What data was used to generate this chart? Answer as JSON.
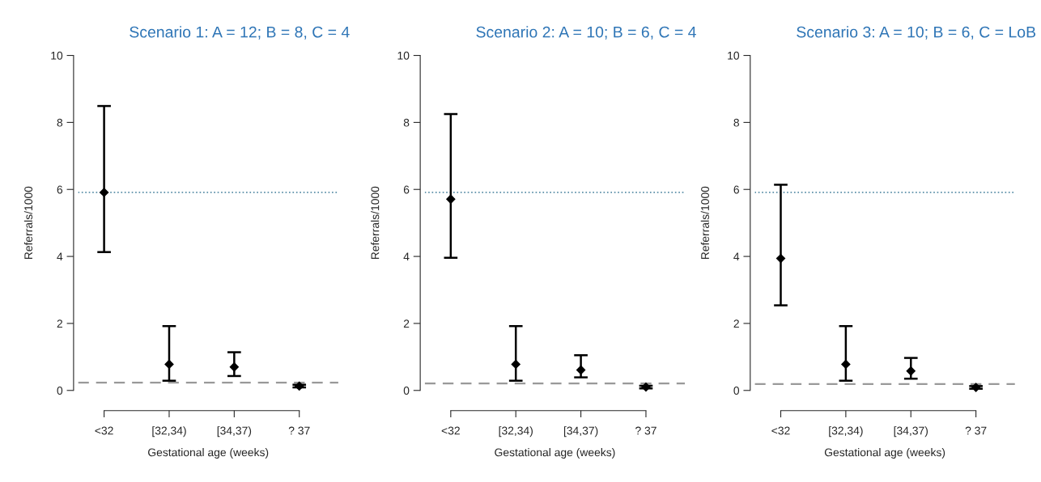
{
  "chart_data": [
    {
      "type": "scatter",
      "title": "Scenario 1: A = 12; B = 8, C = 4",
      "xlabel": "Gestational age (weeks)",
      "ylabel": "Referrals/1000",
      "categories": [
        "<32",
        "[32,34)",
        "[34,37)",
        "? 37"
      ],
      "marker": "diamond",
      "grid": false,
      "ylim": [
        0,
        10
      ],
      "yticks": [
        0,
        2,
        4,
        6,
        8,
        10
      ],
      "series": [
        {
          "color": "#000000",
          "values": [
            5.91,
            0.78,
            0.7,
            0.13
          ],
          "errors": [
            [
              4.13,
              8.49
            ],
            [
              0.29,
              1.92
            ],
            [
              0.43,
              1.14
            ],
            [
              0.09,
              0.17
            ]
          ]
        }
      ],
      "ref_lines": [
        {
          "axis": "y",
          "value": 5.91,
          "color": "#5b8fa8",
          "line_style": "dotted"
        },
        {
          "axis": "y",
          "value": 0.23,
          "color": "#999999",
          "line_style": "dashed"
        }
      ]
    },
    {
      "type": "scatter",
      "title": "Scenario 2: A = 10; B = 6, C = 4",
      "xlabel": "Gestational age (weeks)",
      "ylabel": "Referrals/1000",
      "categories": [
        "<32",
        "[32,34)",
        "[34,37)",
        "? 37"
      ],
      "marker": "diamond",
      "grid": false,
      "ylim": [
        0,
        10
      ],
      "yticks": [
        0,
        2,
        4,
        6,
        8,
        10
      ],
      "series": [
        {
          "color": "#000000",
          "values": [
            5.71,
            0.78,
            0.61,
            0.1
          ],
          "errors": [
            [
              3.96,
              8.25
            ],
            [
              0.29,
              1.92
            ],
            [
              0.39,
              1.05
            ],
            [
              0.06,
              0.14
            ]
          ]
        }
      ],
      "ref_lines": [
        {
          "axis": "y",
          "value": 5.91,
          "color": "#5b8fa8",
          "line_style": "dotted"
        },
        {
          "axis": "y",
          "value": 0.21,
          "color": "#999999",
          "line_style": "dashed"
        }
      ]
    },
    {
      "type": "scatter",
      "title": "Scenario 3: A = 10; B = 6, C = LoB",
      "xlabel": "Gestational age (weeks)",
      "ylabel": "Referrals/1000",
      "categories": [
        "<32",
        "[32,34)",
        "[34,37)",
        "? 37"
      ],
      "marker": "diamond",
      "grid": false,
      "ylim": [
        0,
        10
      ],
      "yticks": [
        0,
        2,
        4,
        6,
        8,
        10
      ],
      "series": [
        {
          "color": "#000000",
          "values": [
            3.94,
            0.78,
            0.58,
            0.09
          ],
          "errors": [
            [
              2.54,
              6.14
            ],
            [
              0.29,
              1.92
            ],
            [
              0.35,
              0.97
            ],
            [
              0.05,
              0.13
            ]
          ]
        }
      ],
      "ref_lines": [
        {
          "axis": "y",
          "value": 5.91,
          "color": "#5b8fa8",
          "line_style": "dotted"
        },
        {
          "axis": "y",
          "value": 0.19,
          "color": "#999999",
          "line_style": "dashed"
        }
      ]
    }
  ]
}
